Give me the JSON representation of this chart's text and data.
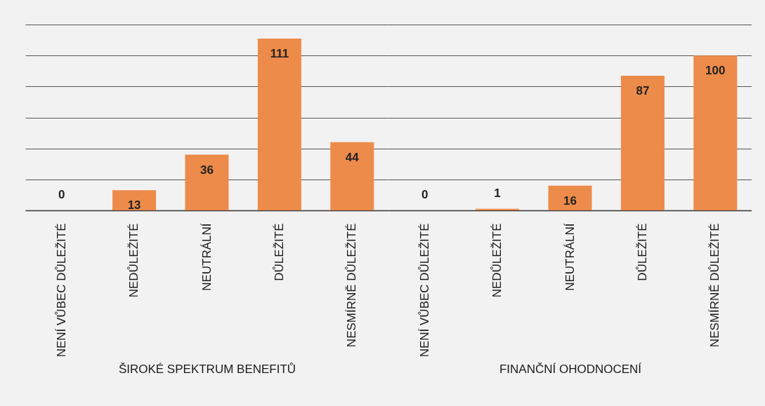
{
  "chart_data": [
    {
      "type": "bar",
      "xlabel": "ŠIROKÉ SPEKTRUM BENEFITŮ",
      "categories": [
        "NENÍ VŮBEC DŮLEŽITÉ",
        "NEDŮLEŽITÉ",
        "NEUTRÁLNÍ",
        "DŮLEŽITÉ",
        "NESMÍRNĚ DŮLEŽITÉ"
      ],
      "values": [
        0,
        13,
        36,
        111,
        44
      ],
      "color": "#ed8b4a",
      "ylim": [
        0,
        120
      ],
      "yticks": [
        {
          "value": 20,
          "label": null
        },
        {
          "value": 40,
          "label": null
        },
        {
          "value": 60,
          "label": null
        },
        {
          "value": 80,
          "label": null
        },
        {
          "value": 100,
          "label": null
        },
        {
          "value": 120,
          "label": null
        }
      ],
      "grid": "y",
      "data_labels": true,
      "tick_labels": "x"
    },
    {
      "type": "bar",
      "xlabel": "FINANČNÍ OHODNOCENÍ",
      "categories": [
        "NENÍ VŮBEC DŮLEŽITÉ",
        "NEDŮLEŽITÉ",
        "NEUTRÁLNÍ",
        "DŮLEŽITÉ",
        "NESMÍRNĚ DŮLEŽITÉ"
      ],
      "values": [
        0,
        1,
        16,
        87,
        100
      ],
      "color": "#ed8b4a",
      "ylim": [
        0,
        120
      ],
      "yticks": [
        {
          "value": 20,
          "label": null
        },
        {
          "value": 40,
          "label": null
        },
        {
          "value": 60,
          "label": null
        },
        {
          "value": 80,
          "label": null
        },
        {
          "value": 100,
          "label": null
        },
        {
          "value": 120,
          "label": null
        }
      ],
      "grid": "y",
      "data_labels": true,
      "tick_labels": "x"
    }
  ]
}
